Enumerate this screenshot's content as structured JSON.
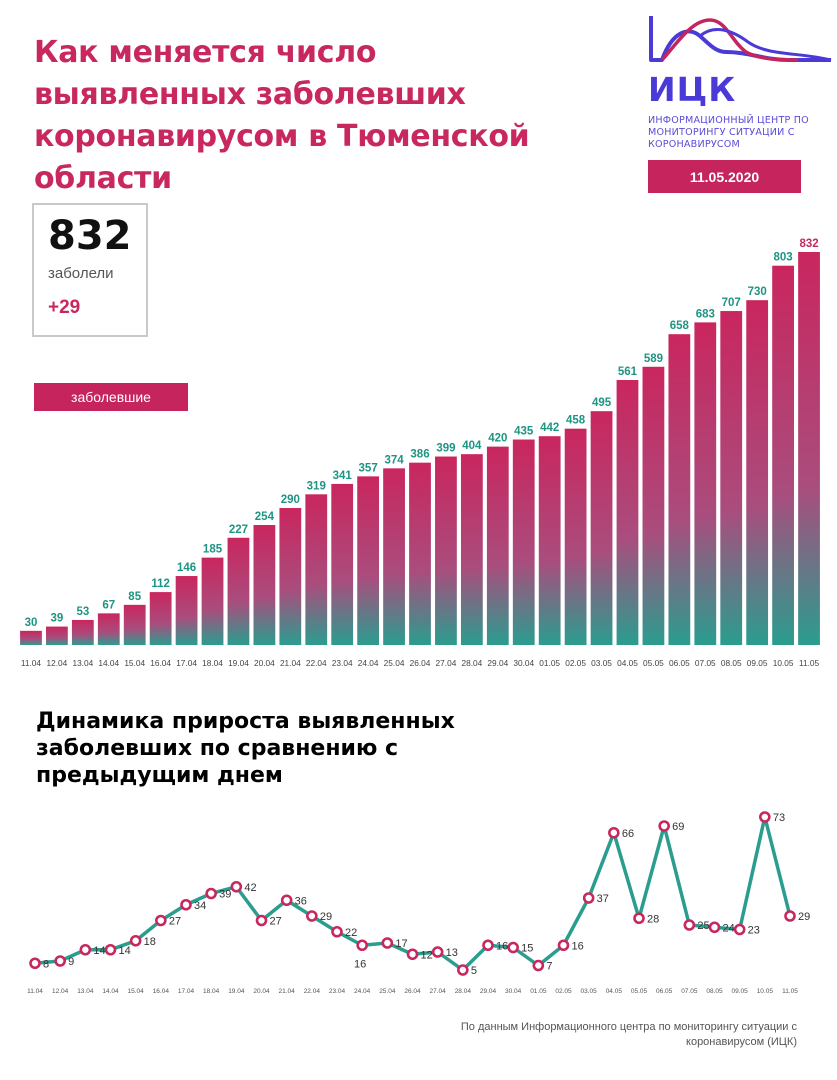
{
  "header": {
    "title": "Как меняется число выявленных заболевших коронавирусом в Тюменской области"
  },
  "logo": {
    "name": "ИЦК",
    "subtitle": "Информационный центр по мониторингу ситуации с коронавирусом",
    "color": "#4a3ad6"
  },
  "date": "11.05.2020",
  "summary": {
    "total": "832",
    "label": "заболели",
    "delta": "+29"
  },
  "legend": {
    "label": "заболевшие"
  },
  "subtitle": "Динамика прироста выявленных заболевших по сравнению с предыдущим днем",
  "source": "По данным Информационного центра по мониторингу ситуации с коронавирусом (ИЦК)",
  "colors": {
    "accent": "#c5255c",
    "teal": "#2a9d8f",
    "label_teal": "#1e9483",
    "label_pink": "#c8285f"
  },
  "chart_data": [
    {
      "type": "bar",
      "categories": [
        "11.04",
        "12.04",
        "13.04",
        "14.04",
        "15.04",
        "16.04",
        "17.04",
        "18.04",
        "19.04",
        "20.04",
        "21.04",
        "22.04",
        "23.04",
        "24.04",
        "25.04",
        "26.04",
        "27.04",
        "28.04",
        "29.04",
        "30.04",
        "01.05",
        "02.05",
        "03.05",
        "04.05",
        "05.05",
        "06.05",
        "07.05",
        "08.05",
        "09.05",
        "10.05",
        "11.05"
      ],
      "values": [
        30,
        39,
        53,
        67,
        85,
        112,
        146,
        185,
        227,
        254,
        290,
        319,
        341,
        357,
        374,
        386,
        399,
        404,
        420,
        435,
        442,
        458,
        495,
        561,
        589,
        658,
        683,
        707,
        730,
        803,
        832
      ],
      "ylim": [
        0,
        832
      ],
      "grid": false
    },
    {
      "type": "line",
      "categories": [
        "11.04",
        "12.04",
        "13.04",
        "14.04",
        "15.04",
        "16.04",
        "17.04",
        "18.04",
        "19.04",
        "20.04",
        "21.04",
        "22.04",
        "23.04",
        "24.04",
        "25.04",
        "26.04",
        "27.04",
        "28.04",
        "29.04",
        "30.04",
        "01.05",
        "02.05",
        "03.05",
        "04.05",
        "05.05",
        "06.05",
        "07.05",
        "08.05",
        "09.05",
        "10.05",
        "11.05"
      ],
      "values": [
        8,
        9,
        14,
        14,
        18,
        27,
        34,
        39,
        42,
        27,
        36,
        29,
        22,
        16,
        17,
        12,
        13,
        5,
        16,
        15,
        7,
        16,
        37,
        66,
        28,
        69,
        25,
        24,
        23,
        73,
        29
      ],
      "ylim": [
        5,
        73
      ],
      "grid": false
    }
  ]
}
